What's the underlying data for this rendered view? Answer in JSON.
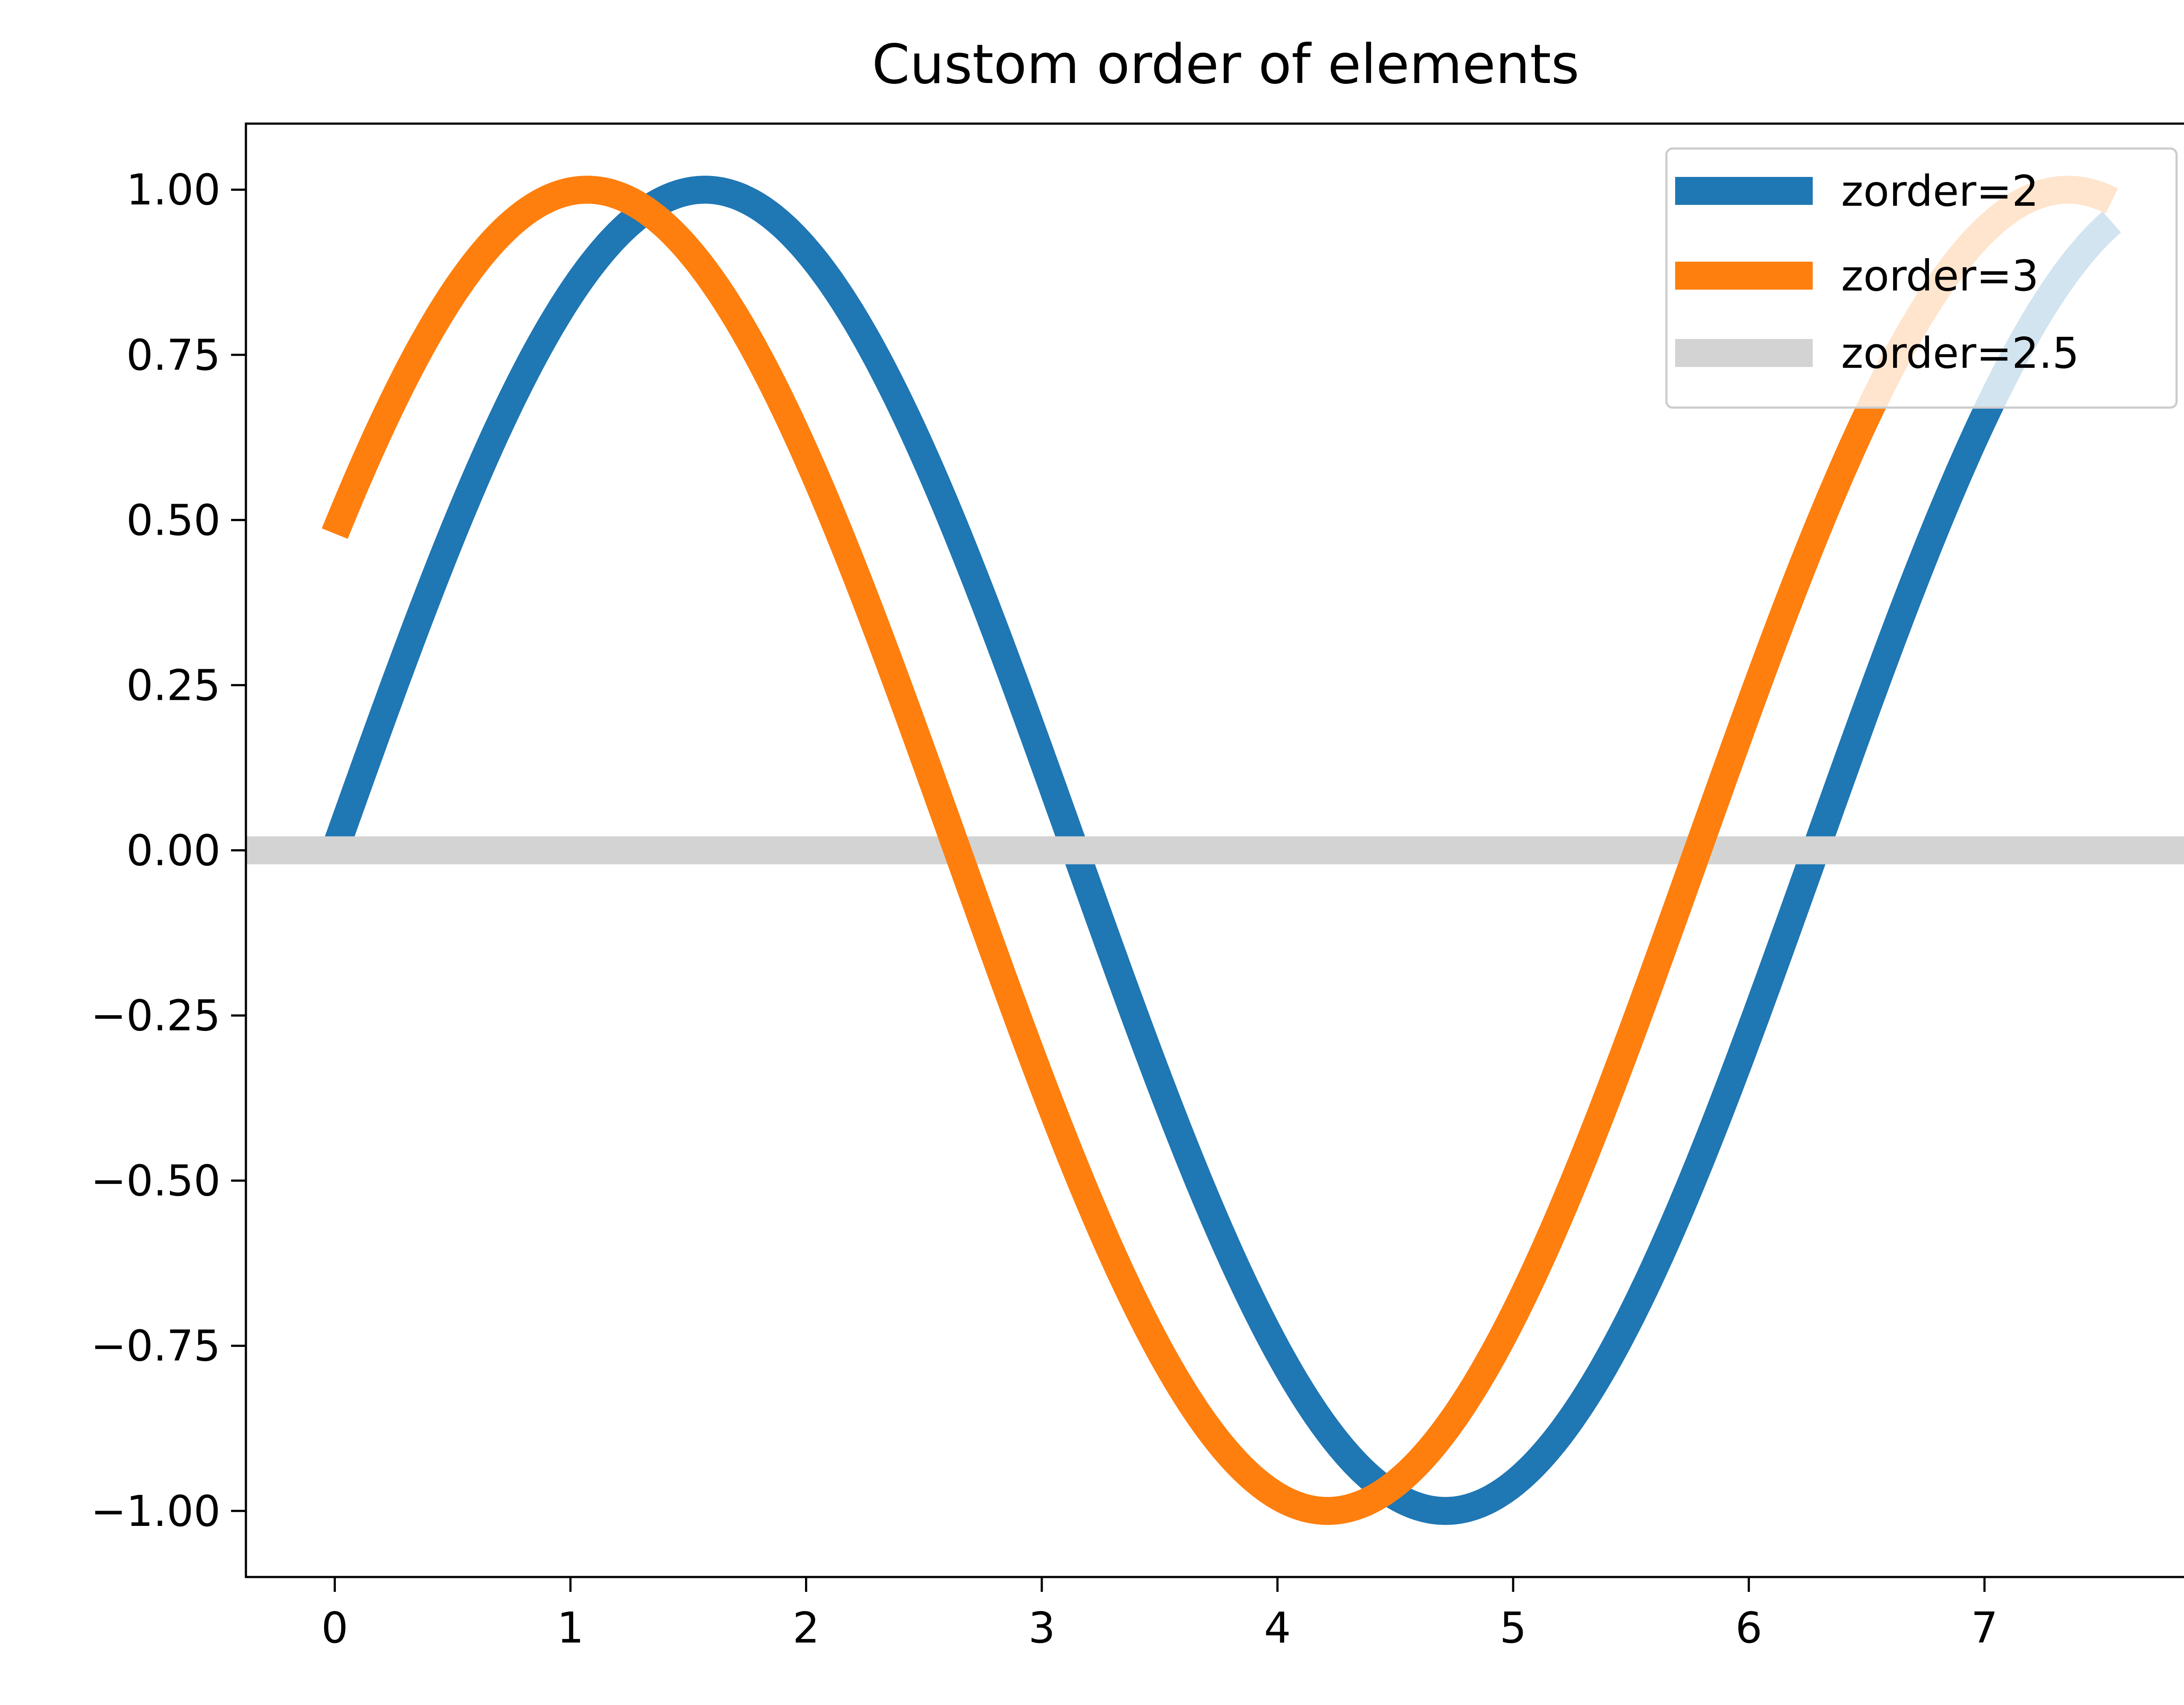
{
  "chart_data": {
    "type": "line",
    "title": "Custom order of elements",
    "xlabel": "",
    "ylabel": "",
    "xlim": [
      -0.377,
      7.917
    ],
    "ylim": [
      -1.1,
      1.1
    ],
    "xticks": [
      0,
      1,
      2,
      3,
      4,
      5,
      6,
      7
    ],
    "xtick_labels": [
      "0",
      "1",
      "2",
      "3",
      "4",
      "5",
      "6",
      "7"
    ],
    "yticks": [
      1.0,
      0.75,
      0.5,
      0.25,
      0.0,
      -0.25,
      -0.5,
      -0.75,
      -1.0
    ],
    "ytick_labels": [
      "1.00",
      "0.75",
      "0.50",
      "0.25",
      "0.00",
      "−0.25",
      "−0.50",
      "−0.75",
      "−1.00"
    ],
    "grid": false,
    "legend_position": "upper right",
    "series": [
      {
        "name": "zorder=2",
        "kind": "curve",
        "formula": "sin(x)",
        "x": [
          0.0,
          0.25,
          0.5,
          0.75,
          1.0,
          1.25,
          1.5,
          1.75,
          2.0,
          2.25,
          2.5,
          2.75,
          3.0,
          3.25,
          3.5,
          3.75,
          4.0,
          4.25,
          4.5,
          4.75,
          5.0,
          5.25,
          5.5,
          5.75,
          6.0,
          6.25,
          6.5,
          6.75,
          7.0,
          7.25,
          7.54
        ],
        "y": [
          0.0,
          0.247,
          0.479,
          0.682,
          0.841,
          0.949,
          0.997,
          0.984,
          0.909,
          0.778,
          0.598,
          0.382,
          0.141,
          -0.108,
          -0.351,
          -0.572,
          -0.757,
          -0.895,
          -0.978,
          -0.999,
          -0.959,
          -0.859,
          -0.706,
          -0.51,
          -0.279,
          -0.033,
          0.215,
          0.451,
          0.657,
          0.823,
          0.952
        ],
        "color": "#1f77b4",
        "zorder": 2
      },
      {
        "name": "zorder=3",
        "kind": "curve",
        "formula": "sin(x + 0.5)",
        "x": [
          0.0,
          0.25,
          0.5,
          0.75,
          1.0,
          1.25,
          1.5,
          1.75,
          2.0,
          2.25,
          2.5,
          2.75,
          3.0,
          3.25,
          3.5,
          3.75,
          4.0,
          4.25,
          4.5,
          4.75,
          5.0,
          5.25,
          5.5,
          5.75,
          6.0,
          6.25,
          6.5,
          6.75,
          7.0,
          7.25,
          7.54
        ],
        "y": [
          0.479,
          0.682,
          0.841,
          0.949,
          0.997,
          0.984,
          0.909,
          0.778,
          0.598,
          0.382,
          0.141,
          -0.108,
          -0.351,
          -0.572,
          -0.757,
          -0.895,
          -0.978,
          -0.999,
          -0.959,
          -0.859,
          -0.706,
          -0.51,
          -0.279,
          -0.033,
          0.215,
          0.451,
          0.657,
          0.823,
          0.938,
          0.996,
          0.989
        ],
        "color": "#ff7f0e",
        "zorder": 3
      },
      {
        "name": "zorder=2.5",
        "kind": "hline",
        "y": 0.0,
        "color": "#d3d3d3",
        "zorder": 2.5
      }
    ]
  }
}
